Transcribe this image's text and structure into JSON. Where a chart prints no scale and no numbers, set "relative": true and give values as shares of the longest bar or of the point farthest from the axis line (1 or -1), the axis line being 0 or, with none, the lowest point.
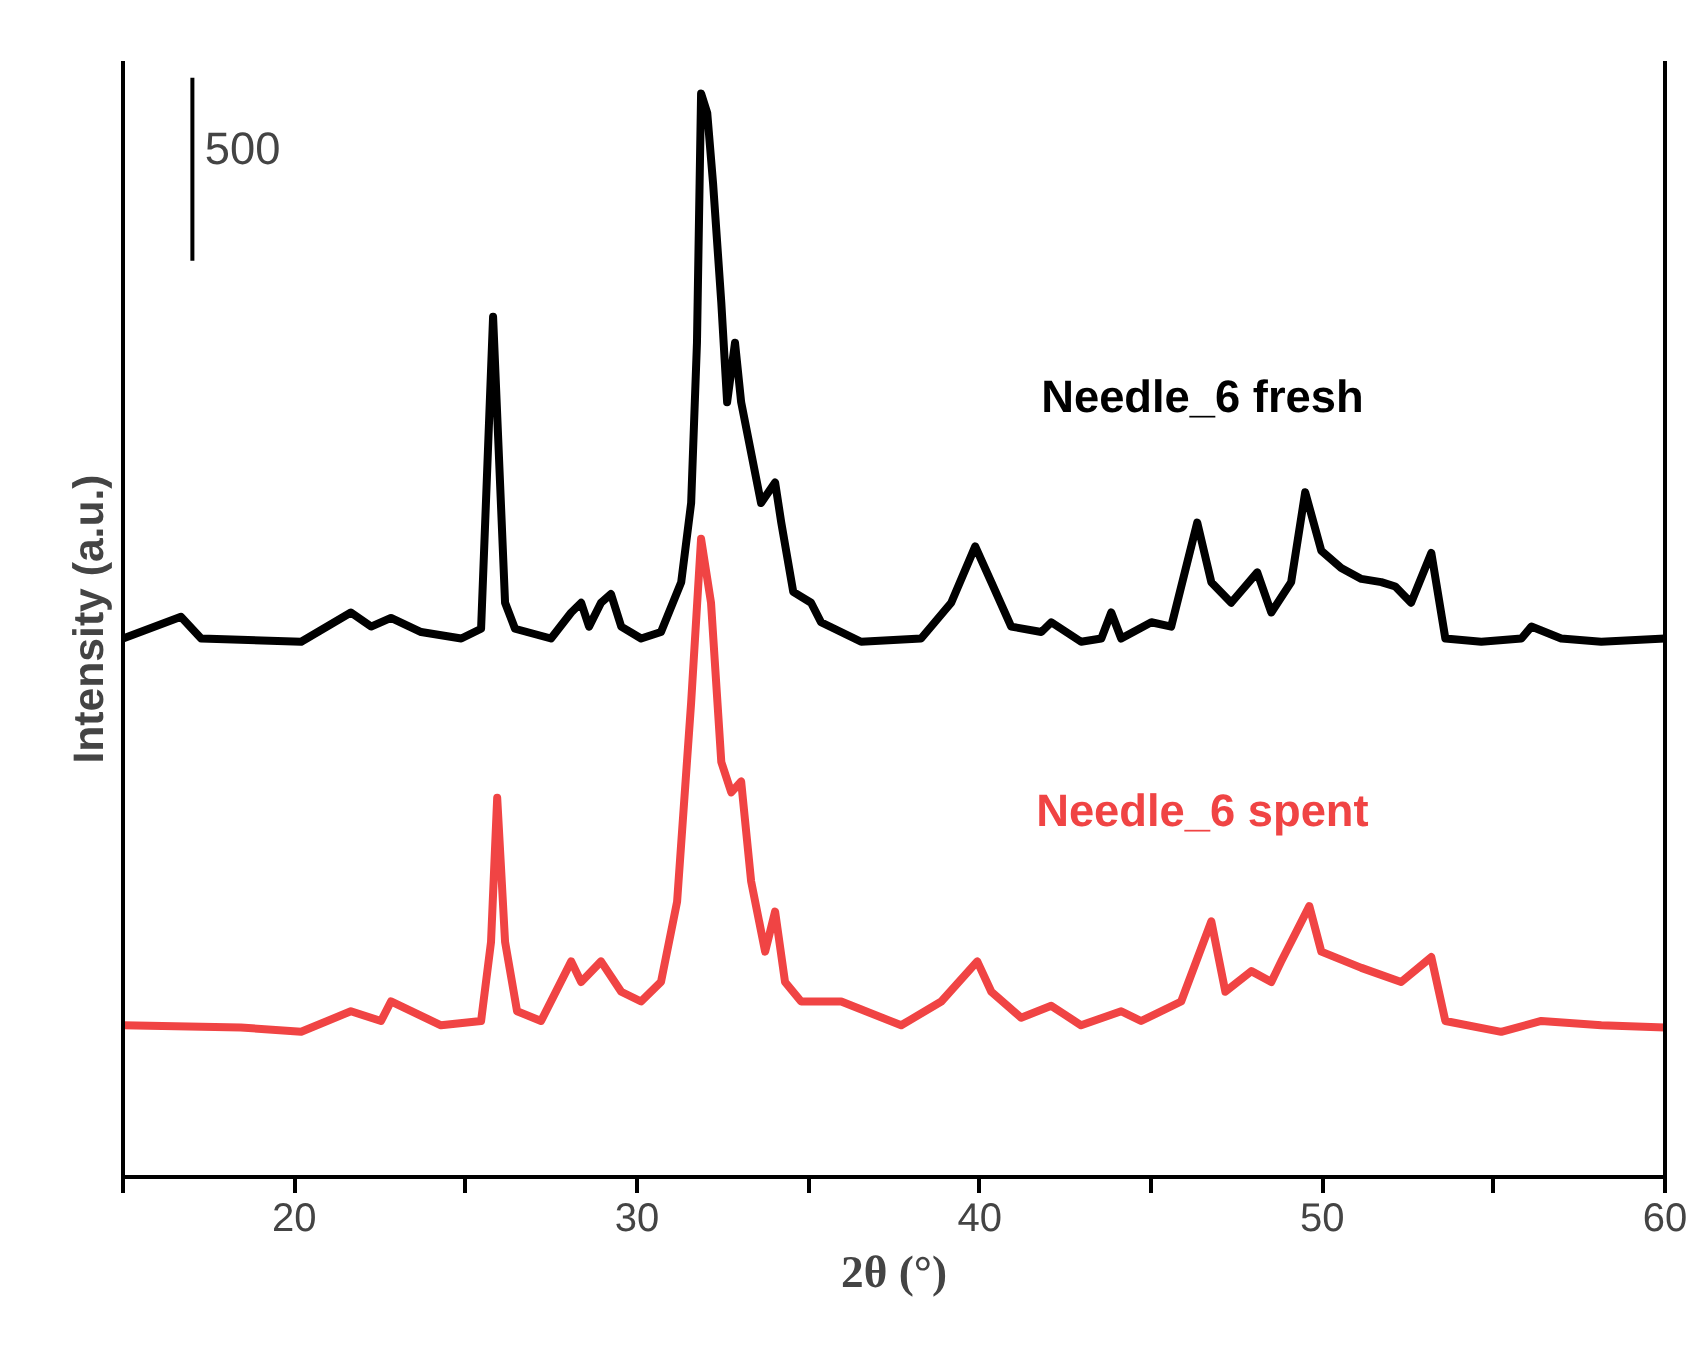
{
  "chart_data": {
    "type": "line",
    "relative": true,
    "xlabel": "2θ (°)",
    "ylabel": "Intensity (a.u.)",
    "annotations": [
      "500"
    ],
    "xlim": [
      15,
      60
    ],
    "xticks": [
      {
        "value": 15,
        "label": null
      },
      20,
      {
        "value": 25,
        "label": null
      },
      30,
      {
        "value": 35,
        "label": null
      },
      40,
      {
        "value": 45,
        "label": null
      },
      50,
      {
        "value": 55,
        "label": null
      },
      60
    ],
    "grid": false,
    "legend": false,
    "tick_labels": "x",
    "line_style": "solid",
    "marker": "none",
    "series": [
      {
        "name": "Needle_6 fresh",
        "color": "#000000",
        "x": [
          15,
          16.69,
          17.28,
          20.2,
          21.65,
          22.24,
          22.82,
          23.7,
          24.87,
          25.45,
          25.8,
          26.15,
          26.44,
          27.49,
          28.08,
          28.37,
          28.6,
          28.95,
          29.24,
          29.54,
          30.12,
          30.7,
          31.29,
          31.58,
          31.75,
          31.87,
          32.05,
          32.22,
          32.46,
          32.63,
          32.86,
          33.04,
          33.62,
          34.03,
          34.21,
          34.56,
          35.08,
          35.37,
          36.54,
          38.29,
          39.17,
          39.87,
          40.34,
          40.92,
          41.8,
          42.09,
          42.96,
          43.55,
          43.84,
          44.13,
          45.01,
          45.59,
          46.35,
          46.76,
          47.34,
          48.1,
          48.51,
          49.09,
          49.5,
          49.97,
          50.55,
          51.14,
          51.72,
          52.13,
          52.59,
          53.18,
          53.59,
          54.64,
          55.81,
          56.1,
          56.97,
          58.14,
          60
        ],
        "values": [
          0.497,
          0.517,
          0.497,
          0.494,
          0.521,
          0.508,
          0.516,
          0.503,
          0.497,
          0.506,
          0.794,
          0.53,
          0.506,
          0.497,
          0.521,
          0.53,
          0.508,
          0.53,
          0.538,
          0.508,
          0.497,
          0.503,
          0.549,
          0.622,
          0.77,
          1.0,
          0.982,
          0.917,
          0.807,
          0.715,
          0.77,
          0.715,
          0.622,
          0.641,
          0.604,
          0.54,
          0.53,
          0.512,
          0.494,
          0.497,
          0.53,
          0.582,
          0.549,
          0.508,
          0.503,
          0.512,
          0.494,
          0.497,
          0.521,
          0.497,
          0.512,
          0.508,
          0.604,
          0.549,
          0.53,
          0.558,
          0.521,
          0.549,
          0.632,
          0.578,
          0.562,
          0.552,
          0.549,
          0.545,
          0.53,
          0.576,
          0.497,
          0.494,
          0.497,
          0.508,
          0.497,
          0.494,
          0.497
        ]
      },
      {
        "name": "Needle_6 spent",
        "color": "#f04444",
        "x": [
          15,
          18.44,
          20.2,
          21.65,
          22.53,
          22.82,
          24.28,
          25.45,
          25.74,
          25.92,
          26.15,
          26.5,
          27.2,
          28.08,
          28.37,
          28.95,
          29.54,
          30.12,
          30.7,
          31.17,
          31.58,
          31.87,
          32.16,
          32.46,
          32.75,
          33.04,
          33.33,
          33.74,
          34.03,
          34.32,
          34.79,
          35.96,
          37.71,
          38.88,
          39.93,
          40.34,
          41.21,
          42.09,
          42.96,
          44.13,
          44.71,
          45.88,
          46.76,
          47.17,
          47.93,
          48.51,
          48.8,
          49.62,
          49.97,
          51.14,
          52.3,
          53.18,
          53.59,
          55.22,
          56.39,
          58.14,
          60
        ],
        "values": [
          0.14,
          0.138,
          0.134,
          0.153,
          0.144,
          0.162,
          0.14,
          0.144,
          0.217,
          0.35,
          0.217,
          0.153,
          0.144,
          0.199,
          0.18,
          0.199,
          0.171,
          0.162,
          0.18,
          0.254,
          0.438,
          0.589,
          0.53,
          0.383,
          0.355,
          0.365,
          0.273,
          0.208,
          0.245,
          0.18,
          0.162,
          0.162,
          0.14,
          0.162,
          0.199,
          0.171,
          0.147,
          0.158,
          0.14,
          0.153,
          0.144,
          0.162,
          0.236,
          0.171,
          0.19,
          0.18,
          0.199,
          0.25,
          0.208,
          0.193,
          0.18,
          0.203,
          0.144,
          0.134,
          0.144,
          0.14,
          0.138
        ]
      }
    ]
  }
}
